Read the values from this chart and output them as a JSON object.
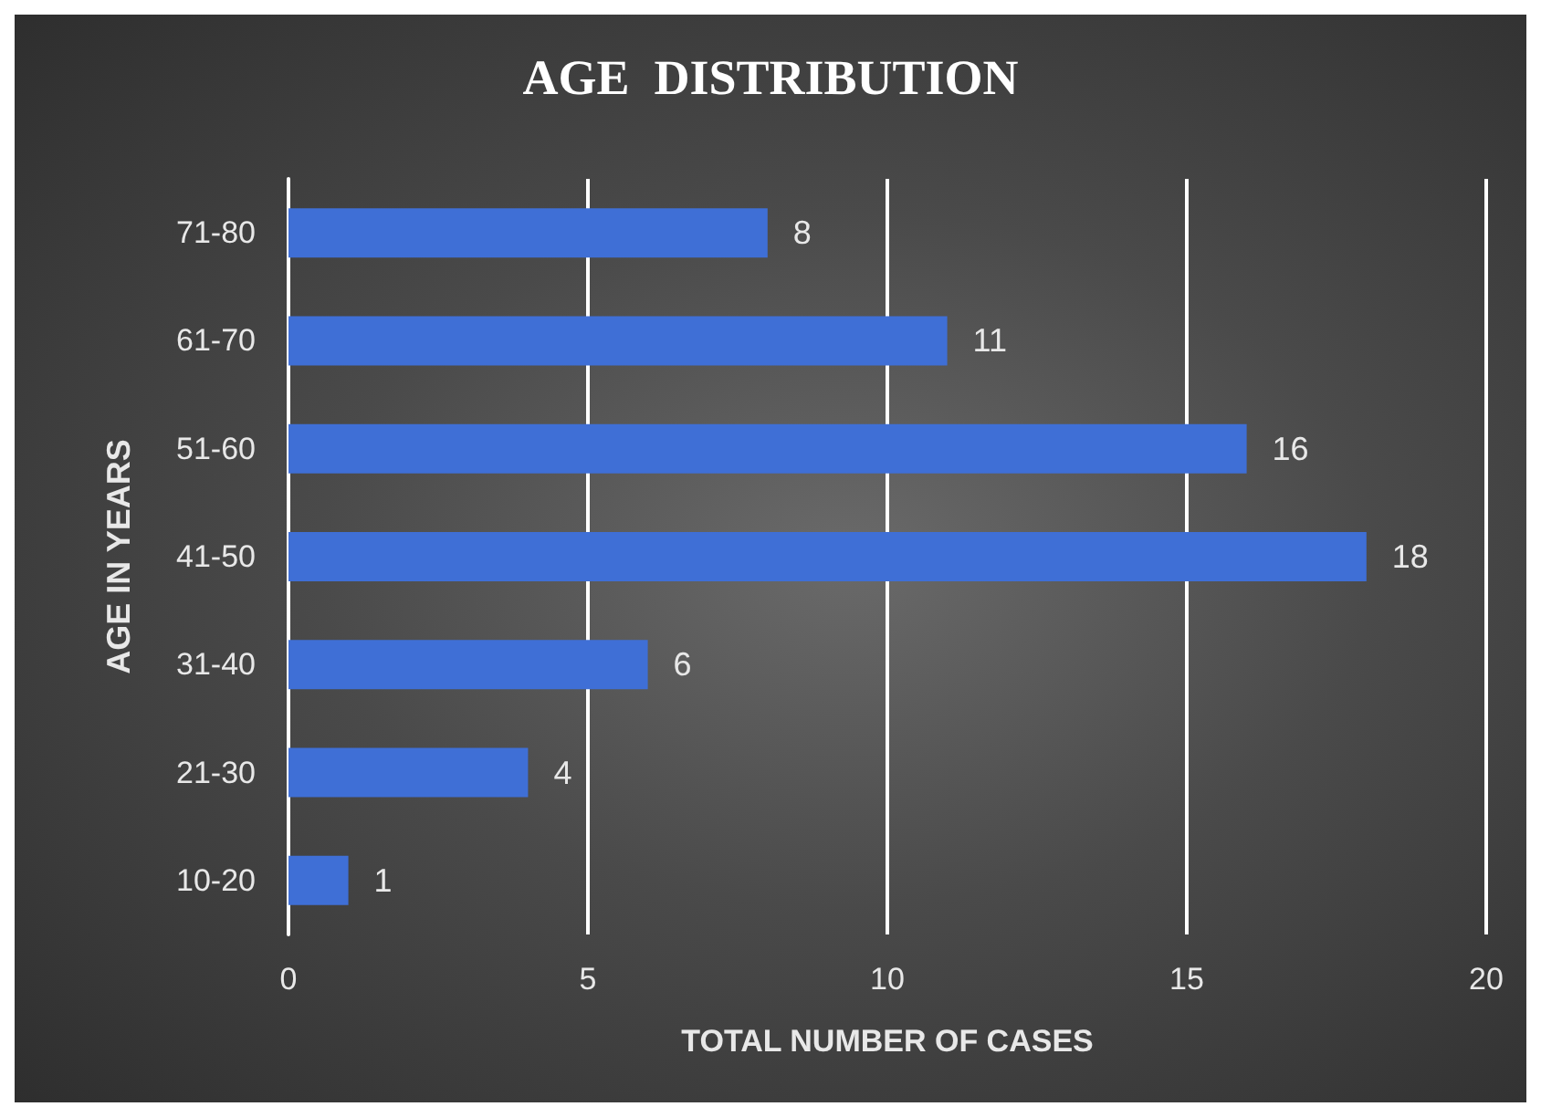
{
  "chart_data": {
    "type": "bar",
    "orientation": "horizontal",
    "title": "AGE  DISTRIBUTION",
    "xlabel": "TOTAL NUMBER OF CASES",
    "ylabel": "AGE IN YEARS",
    "categories": [
      "71-80",
      "61-70",
      "51-60",
      "41-50",
      "31-40",
      "21-30",
      "10-20"
    ],
    "values": [
      8,
      11,
      16,
      18,
      6,
      4,
      1
    ],
    "color": "#3f6fd6",
    "xlim": [
      0,
      20
    ],
    "xticks": [
      0,
      5,
      10,
      15,
      20
    ],
    "grid": "x",
    "data_labels": true
  }
}
